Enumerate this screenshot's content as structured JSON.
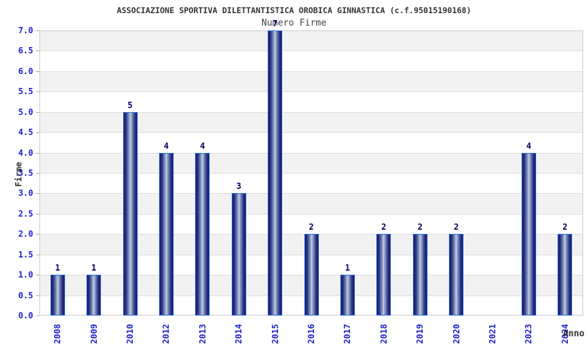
{
  "chart_data": {
    "type": "bar",
    "title": "ASSOCIAZIONE SPORTIVA DILETTANTISTICA OROBICA GINNASTICA (c.f.95015190168)",
    "subtitle": "Numero Firme",
    "xlabel": "Anno",
    "ylabel": "Firme",
    "categories": [
      "2008",
      "2009",
      "2010",
      "2012",
      "2013",
      "2014",
      "2015",
      "2016",
      "2017",
      "2018",
      "2019",
      "2020",
      "2021",
      "2023",
      "2024"
    ],
    "values": [
      1,
      1,
      5,
      4,
      4,
      3,
      7,
      2,
      1,
      2,
      2,
      2,
      0,
      4,
      2
    ],
    "ylim": [
      0,
      7.0
    ],
    "ytick_step": 0.5,
    "ytick_labels": [
      "0.0",
      "0.5",
      "1.0",
      "1.5",
      "2.0",
      "2.5",
      "3.0",
      "3.5",
      "4.0",
      "4.5",
      "5.0",
      "5.5",
      "6.0",
      "6.5",
      "7.0"
    ],
    "grid": true,
    "legend": "none",
    "bar_value_labels_shown": true,
    "colors": {
      "axis_label_text": "#2222cc",
      "value_label_text": "#000066",
      "title_text": "#333333",
      "bar_border": "#2a6ce0",
      "bar_dark": "#15156a",
      "bar_mid": "#2e3a86",
      "bar_light": "#9fb0d0",
      "bar_highlight": "#c9d3e4",
      "band_gray": "#f2f2f2",
      "gridline": "#dddddd",
      "plot_border": "#cccccc"
    }
  }
}
